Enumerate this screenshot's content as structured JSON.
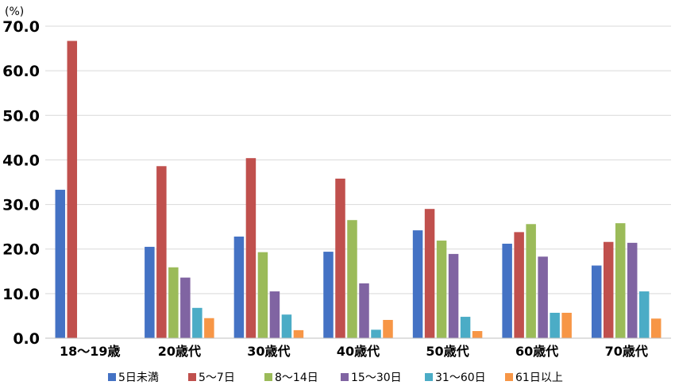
{
  "chart_data": {
    "type": "bar",
    "title": "",
    "ylabel": "(%)",
    "xlabel": "",
    "ylim": [
      0,
      70
    ],
    "yticks": [
      "0.0",
      "10.0",
      "20.0",
      "30.0",
      "40.0",
      "50.0",
      "60.0",
      "70.0"
    ],
    "categories": [
      "18～19歳",
      "20歳代",
      "30歳代",
      "40歳代",
      "50歳代",
      "60歳代",
      "70歳代"
    ],
    "grid": true,
    "legend_position": "bottom",
    "series": [
      {
        "name": "5日未満",
        "color": "#4472c4",
        "values": [
          33.3,
          20.5,
          22.8,
          19.4,
          24.2,
          21.2,
          16.3
        ]
      },
      {
        "name": "5～7日",
        "color": "#c0504d",
        "values": [
          66.7,
          38.6,
          40.4,
          35.8,
          29.0,
          23.8,
          21.6
        ]
      },
      {
        "name": "8～14日",
        "color": "#9bbb59",
        "values": [
          0,
          15.9,
          19.3,
          26.5,
          21.9,
          25.6,
          25.8
        ]
      },
      {
        "name": "15～30日",
        "color": "#8064a2",
        "values": [
          0,
          13.6,
          10.5,
          12.3,
          18.9,
          18.3,
          21.4
        ]
      },
      {
        "name": "31～60日",
        "color": "#4bacc6",
        "values": [
          0,
          6.8,
          5.3,
          1.9,
          4.8,
          5.7,
          10.5
        ]
      },
      {
        "name": "61日以上",
        "color": "#f79646",
        "values": [
          0,
          4.5,
          1.8,
          4.1,
          1.6,
          5.7,
          4.4
        ]
      }
    ]
  }
}
